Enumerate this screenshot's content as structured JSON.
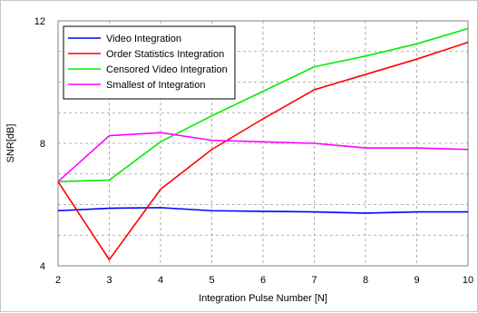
{
  "chart_data": {
    "type": "line",
    "xlabel": "Integration Pulse Number [N]",
    "ylabel": "SNR[dB]",
    "xlim": [
      2,
      10
    ],
    "ylim": [
      4,
      12
    ],
    "x_ticks": [
      2,
      3,
      4,
      5,
      6,
      7,
      8,
      9,
      10
    ],
    "y_ticks": [
      4,
      8,
      12
    ],
    "y_minor_step": 1,
    "grid": true,
    "grid_style": "dashed",
    "legend_position": "top-left",
    "x": [
      2,
      3,
      4,
      5,
      6,
      7,
      8,
      9,
      10
    ],
    "series": [
      {
        "name": "Video Integration",
        "color": "#0000ff",
        "values": [
          5.8,
          5.88,
          5.9,
          5.8,
          5.78,
          5.76,
          5.72,
          5.76,
          5.76
        ]
      },
      {
        "name": "Order Statistics Integration",
        "color": "#ff0000",
        "values": [
          6.75,
          4.2,
          6.5,
          7.8,
          8.8,
          9.75,
          10.25,
          10.75,
          11.3
        ]
      },
      {
        "name": "Censored Video Integration",
        "color": "#00ee00",
        "values": [
          6.75,
          6.8,
          8.05,
          8.9,
          9.7,
          10.5,
          10.85,
          11.25,
          11.75
        ]
      },
      {
        "name": "Smallest of Integration",
        "color": "#ff00ff",
        "values": [
          6.75,
          8.25,
          8.35,
          8.1,
          8.05,
          8.0,
          7.85,
          7.85,
          7.8
        ]
      }
    ]
  }
}
